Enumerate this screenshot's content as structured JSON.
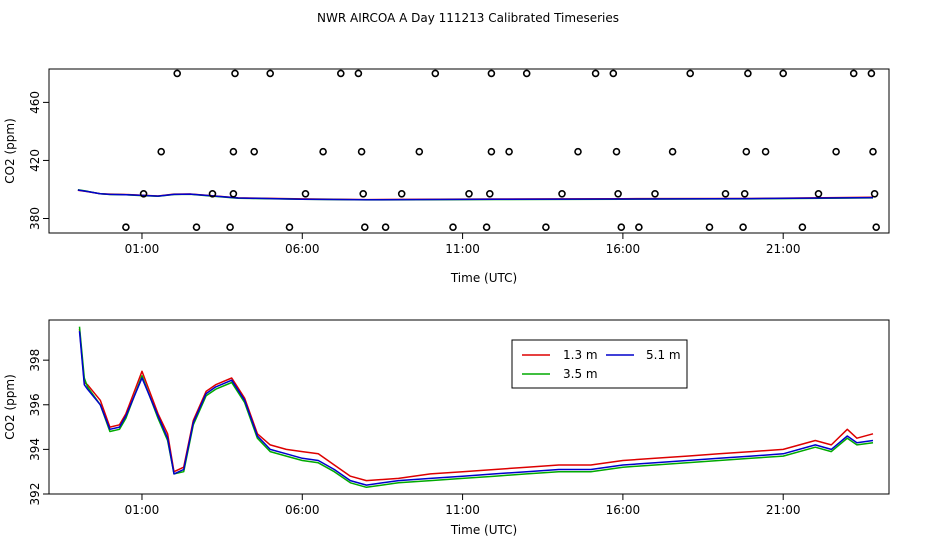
{
  "title": "NWR AIRCOA A  Day 111213  Calibrated Timeseries",
  "chart_data": [
    {
      "type": "scatter",
      "xlabel": "Time (UTC)",
      "ylabel": "CO2 (ppm)",
      "xlim": [
        -1.9,
        24.3
      ],
      "ylim": [
        370,
        483
      ],
      "xticks": [
        1,
        6,
        11,
        16,
        21
      ],
      "xtick_labels": [
        "01:00",
        "06:00",
        "11:00",
        "16:00",
        "21:00"
      ],
      "yticks": [
        380,
        420,
        460
      ],
      "ytick_labels": [
        "380",
        "420",
        "460"
      ],
      "points": [
        {
          "x": 0.5,
          "y": 374
        },
        {
          "x": 1.05,
          "y": 397
        },
        {
          "x": 1.6,
          "y": 426
        },
        {
          "x": 2.1,
          "y": 480
        },
        {
          "x": 2.7,
          "y": 374
        },
        {
          "x": 3.2,
          "y": 397
        },
        {
          "x": 3.75,
          "y": 374
        },
        {
          "x": 3.85,
          "y": 397
        },
        {
          "x": 3.85,
          "y": 426
        },
        {
          "x": 3.9,
          "y": 480
        },
        {
          "x": 4.5,
          "y": 426
        },
        {
          "x": 5.0,
          "y": 480
        },
        {
          "x": 5.6,
          "y": 374
        },
        {
          "x": 6.1,
          "y": 397
        },
        {
          "x": 6.65,
          "y": 426
        },
        {
          "x": 7.2,
          "y": 480
        },
        {
          "x": 7.75,
          "y": 480
        },
        {
          "x": 7.85,
          "y": 426
        },
        {
          "x": 7.9,
          "y": 397
        },
        {
          "x": 7.95,
          "y": 374
        },
        {
          "x": 8.6,
          "y": 374
        },
        {
          "x": 9.1,
          "y": 397
        },
        {
          "x": 9.65,
          "y": 426
        },
        {
          "x": 10.15,
          "y": 480
        },
        {
          "x": 10.7,
          "y": 374
        },
        {
          "x": 11.2,
          "y": 397
        },
        {
          "x": 11.75,
          "y": 374
        },
        {
          "x": 11.85,
          "y": 397
        },
        {
          "x": 11.9,
          "y": 426
        },
        {
          "x": 11.9,
          "y": 480
        },
        {
          "x": 12.45,
          "y": 426
        },
        {
          "x": 13.0,
          "y": 480
        },
        {
          "x": 13.6,
          "y": 374
        },
        {
          "x": 14.1,
          "y": 397
        },
        {
          "x": 14.6,
          "y": 426
        },
        {
          "x": 15.15,
          "y": 480
        },
        {
          "x": 15.7,
          "y": 480
        },
        {
          "x": 15.8,
          "y": 426
        },
        {
          "x": 15.85,
          "y": 397
        },
        {
          "x": 15.95,
          "y": 374
        },
        {
          "x": 16.5,
          "y": 374
        },
        {
          "x": 17.0,
          "y": 397
        },
        {
          "x": 17.55,
          "y": 426
        },
        {
          "x": 18.1,
          "y": 480
        },
        {
          "x": 18.7,
          "y": 374
        },
        {
          "x": 19.2,
          "y": 397
        },
        {
          "x": 19.75,
          "y": 374
        },
        {
          "x": 19.8,
          "y": 397
        },
        {
          "x": 19.85,
          "y": 426
        },
        {
          "x": 19.9,
          "y": 480
        },
        {
          "x": 20.45,
          "y": 426
        },
        {
          "x": 21.0,
          "y": 480
        },
        {
          "x": 21.6,
          "y": 374
        },
        {
          "x": 22.1,
          "y": 397
        },
        {
          "x": 22.65,
          "y": 426
        },
        {
          "x": 23.2,
          "y": 480
        },
        {
          "x": 23.75,
          "y": 480
        },
        {
          "x": 23.8,
          "y": 426
        },
        {
          "x": 23.85,
          "y": 397
        },
        {
          "x": 23.9,
          "y": 374
        }
      ],
      "series": [
        {
          "color": "#dd0000",
          "x": [
            -1,
            -0.7,
            -0.3,
            0,
            0.5,
            1,
            1.5,
            2,
            2.5,
            3,
            4,
            6,
            8,
            12,
            16,
            20,
            23.8
          ],
          "values": [
            399.5,
            398.5,
            397,
            396.8,
            396.5,
            396,
            395.5,
            396.8,
            396.9,
            396,
            394.2,
            393.5,
            393,
            393.4,
            393.6,
            393.8,
            394.6
          ]
        },
        {
          "color": "#00aa00",
          "x": [
            -1,
            -0.7,
            -0.3,
            0,
            0.5,
            1,
            1.5,
            2,
            2.5,
            3,
            4,
            6,
            8,
            12,
            16,
            20,
            23.8
          ],
          "values": [
            399.8,
            398.7,
            397,
            396.5,
            396.3,
            395.8,
            395.3,
            396.5,
            396.7,
            395.8,
            394,
            393.2,
            392.8,
            393.1,
            393.3,
            393.5,
            394.2
          ]
        },
        {
          "color": "#0000cc",
          "x": [
            -1,
            -0.7,
            -0.3,
            0,
            0.5,
            1,
            1.5,
            2,
            2.5,
            3,
            4,
            6,
            8,
            12,
            16,
            20,
            23.8
          ],
          "values": [
            399.6,
            398.6,
            397,
            396.6,
            396.4,
            395.9,
            395.4,
            396.6,
            396.8,
            395.9,
            394.1,
            393.3,
            392.9,
            393.2,
            393.4,
            393.7,
            394.4
          ]
        }
      ]
    },
    {
      "type": "line",
      "xlabel": "Time (UTC)",
      "ylabel": "CO2 (ppm)",
      "xlim": [
        -1.9,
        24.3
      ],
      "ylim": [
        392,
        399.8
      ],
      "xticks": [
        1,
        6,
        11,
        16,
        21
      ],
      "xtick_labels": [
        "01:00",
        "06:00",
        "11:00",
        "16:00",
        "21:00"
      ],
      "yticks": [
        392,
        394,
        396,
        398
      ],
      "ytick_labels": [
        "392",
        "394",
        "396",
        "398"
      ],
      "legend": {
        "position": "top-right",
        "entries": [
          "1.3 m",
          "3.5 m",
          "5.1 m"
        ]
      },
      "series": [
        {
          "name": "1.3 m",
          "color": "#dd0000",
          "x": [
            -0.95,
            -0.8,
            -0.7,
            -0.3,
            0,
            0.3,
            0.5,
            1,
            1.5,
            1.8,
            2,
            2.3,
            2.6,
            3,
            3.3,
            3.8,
            4.2,
            4.6,
            5,
            5.5,
            6,
            6.5,
            7,
            7.5,
            8,
            9,
            10,
            11,
            12,
            13,
            14,
            15,
            16,
            17,
            18,
            19,
            20,
            21,
            22,
            22.5,
            23,
            23.3,
            23.8
          ],
          "values": [
            399.4,
            397.0,
            396.9,
            396.2,
            395.0,
            395.1,
            395.6,
            397.5,
            395.6,
            394.7,
            393.0,
            393.2,
            395.3,
            396.6,
            396.9,
            397.2,
            396.3,
            394.7,
            394.2,
            394.0,
            393.9,
            393.8,
            393.3,
            392.8,
            392.6,
            392.7,
            392.9,
            393.0,
            393.1,
            393.2,
            393.3,
            393.3,
            393.5,
            393.6,
            393.7,
            393.8,
            393.9,
            394.0,
            394.4,
            394.2,
            394.9,
            394.5,
            394.7
          ]
        },
        {
          "name": "3.5 m",
          "color": "#00aa00",
          "x": [
            -0.95,
            -0.8,
            -0.7,
            -0.3,
            0,
            0.3,
            0.5,
            1,
            1.5,
            1.8,
            2,
            2.3,
            2.6,
            3,
            3.3,
            3.8,
            4.2,
            4.6,
            5,
            5.5,
            6,
            6.5,
            7,
            7.5,
            8,
            9,
            10,
            11,
            12,
            13,
            14,
            15,
            16,
            17,
            18,
            19,
            20,
            21,
            22,
            22.5,
            23,
            23.3,
            23.8
          ],
          "values": [
            399.5,
            397.2,
            396.8,
            396.0,
            394.8,
            394.9,
            395.4,
            397.3,
            395.4,
            394.4,
            392.9,
            393.0,
            395.1,
            396.4,
            396.7,
            397.0,
            396.1,
            394.5,
            393.9,
            393.7,
            393.5,
            393.4,
            393.0,
            392.5,
            392.3,
            392.5,
            392.6,
            392.7,
            392.8,
            392.9,
            393.0,
            393.0,
            393.2,
            393.3,
            393.4,
            393.5,
            393.6,
            393.7,
            394.1,
            393.9,
            394.5,
            394.2,
            394.3
          ]
        },
        {
          "name": "5.1 m",
          "color": "#0000cc",
          "x": [
            -0.95,
            -0.8,
            -0.7,
            -0.3,
            0,
            0.3,
            0.5,
            1,
            1.5,
            1.8,
            2,
            2.3,
            2.6,
            3,
            3.3,
            3.8,
            4.2,
            4.6,
            5,
            5.5,
            6,
            6.5,
            7,
            7.5,
            8,
            9,
            10,
            11,
            12,
            13,
            14,
            15,
            16,
            17,
            18,
            19,
            20,
            21,
            22,
            22.5,
            23,
            23.3,
            23.8
          ],
          "values": [
            399.3,
            396.9,
            396.7,
            396.0,
            394.9,
            395.0,
            395.5,
            397.2,
            395.5,
            394.5,
            392.9,
            393.1,
            395.2,
            396.5,
            396.8,
            397.1,
            396.2,
            394.6,
            394.0,
            393.8,
            393.6,
            393.5,
            393.1,
            392.6,
            392.4,
            392.6,
            392.7,
            392.8,
            392.9,
            393.0,
            393.1,
            393.1,
            393.3,
            393.4,
            393.5,
            393.6,
            393.7,
            393.8,
            394.2,
            394.0,
            394.6,
            394.3,
            394.4
          ]
        }
      ]
    }
  ]
}
